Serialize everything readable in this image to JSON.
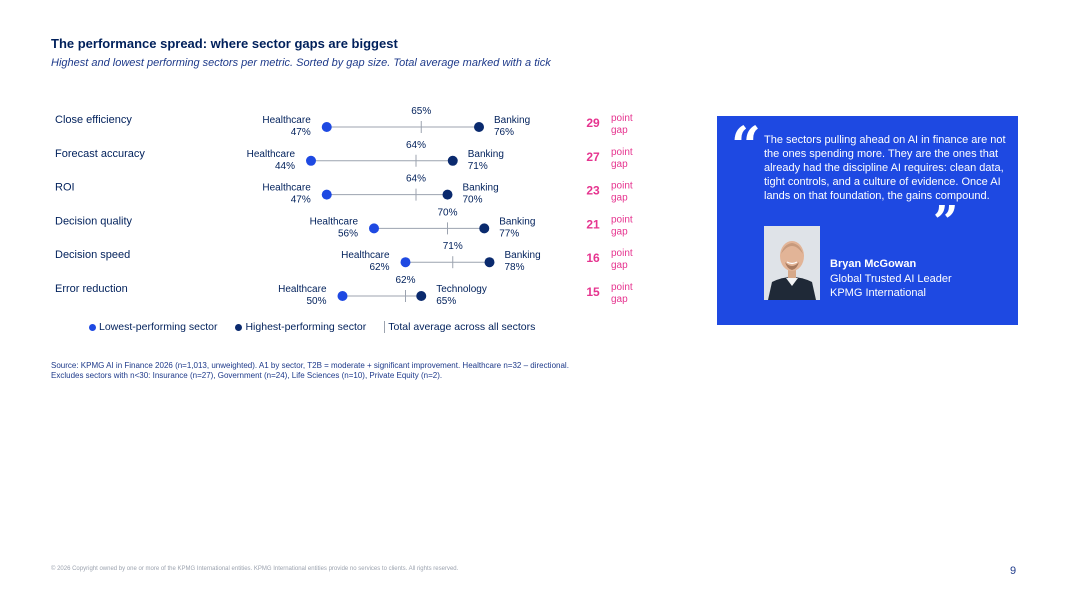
{
  "title": "The performance spread: where sector gaps are biggest",
  "subtitle": "Highest and lowest performing sectors per metric. Sorted by gap size. Total average marked with a tick",
  "colors": {
    "low": "#1e49e2",
    "high": "#0a2a6e",
    "gap": "#e6348f",
    "line": "#9ca3af",
    "quote_bg": "#1e49e2"
  },
  "gap_suffix": [
    "point",
    "gap"
  ],
  "chart_data": {
    "type": "dumbbell",
    "title": "The performance spread: where sector gaps are biggest",
    "rows": [
      {
        "metric": "Close efficiency",
        "low_sector": "Healthcare",
        "low": 47,
        "high_sector": "Banking",
        "high": 76,
        "avg": 65,
        "gap": 29
      },
      {
        "metric": "Forecast accuracy",
        "low_sector": "Healthcare",
        "low": 44,
        "high_sector": "Banking",
        "high": 71,
        "avg": 64,
        "gap": 27
      },
      {
        "metric": "ROI",
        "low_sector": "Healthcare",
        "low": 47,
        "high_sector": "Banking",
        "high": 70,
        "avg": 64,
        "gap": 23
      },
      {
        "metric": "Decision quality",
        "low_sector": "Healthcare",
        "low": 56,
        "high_sector": "Banking",
        "high": 77,
        "avg": 70,
        "gap": 21
      },
      {
        "metric": "Decision speed",
        "low_sector": "Healthcare",
        "low": 62,
        "high_sector": "Banking",
        "high": 78,
        "avg": 71,
        "gap": 16
      },
      {
        "metric": "Error reduction",
        "low_sector": "Healthcare",
        "low": 50,
        "high_sector": "Technology",
        "high": 65,
        "avg": 62,
        "gap": 15
      }
    ],
    "legend": [
      "Lowest-performing sector",
      "Highest-performing sector",
      "Total average across all sectors"
    ],
    "unit": "%"
  },
  "source_line1": "Source: KPMG AI in Finance 2026 (n=1,013, unweighted). A1 by sector, T2B = moderate + significant improvement. Healthcare n=32 – directional.",
  "source_line2": "Excludes sectors with n<30: Insurance (n=27), Government (n=24), Life Sciences (n=10), Private Equity (n=2).",
  "quote": {
    "open_mark": "“",
    "close_mark": "”",
    "text": "The sectors pulling ahead on AI in finance are not the ones spending more. They are the ones that already had the discipline AI requires: clean data, tight controls, and a culture of evidence. Once AI lands on that foundation, the gains compound.",
    "name": "Bryan McGowan",
    "role": "Global Trusted AI Leader",
    "org": "KPMG International"
  },
  "copyright": "© 2026 Copyright owned by one or more of the KPMG International entities. KPMG International entities provide no services to clients. All rights reserved.",
  "page_number": "9"
}
